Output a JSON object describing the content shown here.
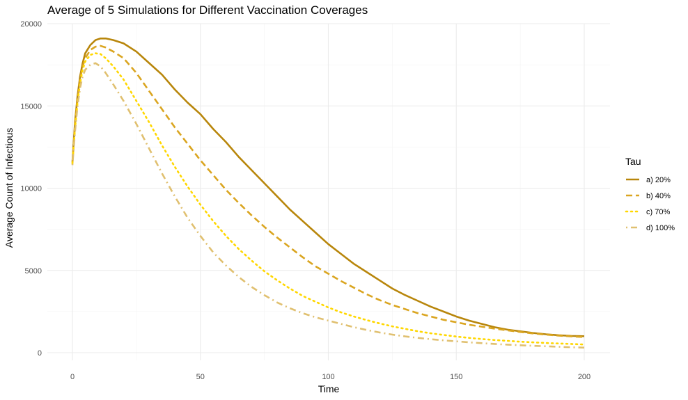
{
  "chart_data": {
    "type": "line",
    "title": "Average of 5 Simulations for Different Vaccination Coverages",
    "xlabel": "Time",
    "ylabel": "Average Count of Infectious",
    "xlim": [
      -8,
      210
    ],
    "ylim": [
      -300,
      20300
    ],
    "x_ticks": [
      0,
      50,
      100,
      150,
      200
    ],
    "x_tick_labels": [
      "0",
      "50",
      "100",
      "150",
      "200"
    ],
    "y_ticks": [
      0,
      5000,
      10000,
      15000,
      20000
    ],
    "y_tick_labels": [
      "0",
      "5000",
      "10000",
      "15000",
      "20000"
    ],
    "grid": true,
    "legend": {
      "title": "Tau",
      "position": "right"
    },
    "series": [
      {
        "name": "a) 20%",
        "color": "#B8860B",
        "dash": "solid",
        "points": [
          [
            0,
            11600
          ],
          [
            1,
            14000
          ],
          [
            2,
            15600
          ],
          [
            3,
            16800
          ],
          [
            4,
            17600
          ],
          [
            5,
            18200
          ],
          [
            7,
            18700
          ],
          [
            9,
            19000
          ],
          [
            11,
            19100
          ],
          [
            13,
            19100
          ],
          [
            16,
            19000
          ],
          [
            20,
            18800
          ],
          [
            25,
            18300
          ],
          [
            30,
            17600
          ],
          [
            35,
            16900
          ],
          [
            40,
            16000
          ],
          [
            45,
            15200
          ],
          [
            50,
            14500
          ],
          [
            55,
            13600
          ],
          [
            60,
            12800
          ],
          [
            65,
            11900
          ],
          [
            70,
            11100
          ],
          [
            75,
            10300
          ],
          [
            80,
            9500
          ],
          [
            85,
            8700
          ],
          [
            90,
            8000
          ],
          [
            95,
            7300
          ],
          [
            100,
            6600
          ],
          [
            105,
            6000
          ],
          [
            110,
            5400
          ],
          [
            115,
            4900
          ],
          [
            120,
            4400
          ],
          [
            125,
            3900
          ],
          [
            130,
            3500
          ],
          [
            135,
            3150
          ],
          [
            140,
            2800
          ],
          [
            145,
            2500
          ],
          [
            150,
            2200
          ],
          [
            155,
            1950
          ],
          [
            160,
            1750
          ],
          [
            165,
            1550
          ],
          [
            170,
            1400
          ],
          [
            175,
            1300
          ],
          [
            180,
            1200
          ],
          [
            185,
            1120
          ],
          [
            190,
            1060
          ],
          [
            195,
            1020
          ],
          [
            200,
            1000
          ]
        ]
      },
      {
        "name": "b) 40%",
        "color": "#DAA520",
        "dash": "dashed",
        "points": [
          [
            0,
            11500
          ],
          [
            1,
            13800
          ],
          [
            2,
            15400
          ],
          [
            3,
            16600
          ],
          [
            4,
            17400
          ],
          [
            5,
            17900
          ],
          [
            7,
            18400
          ],
          [
            9,
            18600
          ],
          [
            11,
            18650
          ],
          [
            13,
            18550
          ],
          [
            16,
            18300
          ],
          [
            20,
            17900
          ],
          [
            25,
            17000
          ],
          [
            30,
            15900
          ],
          [
            35,
            14800
          ],
          [
            40,
            13700
          ],
          [
            45,
            12700
          ],
          [
            50,
            11700
          ],
          [
            55,
            10800
          ],
          [
            60,
            9900
          ],
          [
            65,
            9100
          ],
          [
            70,
            8350
          ],
          [
            75,
            7650
          ],
          [
            80,
            7000
          ],
          [
            85,
            6400
          ],
          [
            90,
            5800
          ],
          [
            95,
            5250
          ],
          [
            100,
            4800
          ],
          [
            105,
            4350
          ],
          [
            110,
            3950
          ],
          [
            115,
            3550
          ],
          [
            120,
            3200
          ],
          [
            125,
            2900
          ],
          [
            130,
            2650
          ],
          [
            135,
            2400
          ],
          [
            140,
            2200
          ],
          [
            145,
            2000
          ],
          [
            150,
            1850
          ],
          [
            155,
            1700
          ],
          [
            160,
            1580
          ],
          [
            165,
            1460
          ],
          [
            170,
            1360
          ],
          [
            175,
            1260
          ],
          [
            180,
            1170
          ],
          [
            185,
            1100
          ],
          [
            190,
            1040
          ],
          [
            195,
            990
          ],
          [
            200,
            950
          ]
        ]
      },
      {
        "name": "c) 70%",
        "color": "#FFD700",
        "dash": "dotted",
        "points": [
          [
            0,
            11500
          ],
          [
            1,
            13600
          ],
          [
            2,
            15200
          ],
          [
            3,
            16400
          ],
          [
            4,
            17200
          ],
          [
            5,
            17700
          ],
          [
            7,
            18100
          ],
          [
            9,
            18200
          ],
          [
            11,
            18150
          ],
          [
            13,
            17900
          ],
          [
            16,
            17400
          ],
          [
            20,
            16600
          ],
          [
            25,
            15300
          ],
          [
            30,
            14000
          ],
          [
            35,
            12600
          ],
          [
            40,
            11300
          ],
          [
            45,
            10100
          ],
          [
            50,
            9000
          ],
          [
            55,
            8000
          ],
          [
            60,
            7100
          ],
          [
            65,
            6300
          ],
          [
            70,
            5600
          ],
          [
            75,
            4950
          ],
          [
            80,
            4400
          ],
          [
            85,
            3900
          ],
          [
            90,
            3450
          ],
          [
            95,
            3100
          ],
          [
            100,
            2750
          ],
          [
            105,
            2450
          ],
          [
            110,
            2200
          ],
          [
            115,
            1980
          ],
          [
            120,
            1780
          ],
          [
            125,
            1600
          ],
          [
            130,
            1450
          ],
          [
            135,
            1300
          ],
          [
            140,
            1180
          ],
          [
            145,
            1080
          ],
          [
            150,
            980
          ],
          [
            155,
            900
          ],
          [
            160,
            830
          ],
          [
            165,
            770
          ],
          [
            170,
            720
          ],
          [
            175,
            670
          ],
          [
            180,
            630
          ],
          [
            185,
            590
          ],
          [
            190,
            560
          ],
          [
            195,
            530
          ],
          [
            200,
            500
          ]
        ]
      },
      {
        "name": "d) 100%",
        "color": "#E0C070",
        "dash": "dotdash",
        "points": [
          [
            0,
            11400
          ],
          [
            1,
            13400
          ],
          [
            2,
            15000
          ],
          [
            3,
            16100
          ],
          [
            4,
            16800
          ],
          [
            5,
            17200
          ],
          [
            7,
            17500
          ],
          [
            9,
            17600
          ],
          [
            11,
            17400
          ],
          [
            13,
            17000
          ],
          [
            16,
            16300
          ],
          [
            20,
            15300
          ],
          [
            25,
            13900
          ],
          [
            30,
            12400
          ],
          [
            35,
            10900
          ],
          [
            40,
            9500
          ],
          [
            45,
            8200
          ],
          [
            50,
            7100
          ],
          [
            55,
            6100
          ],
          [
            60,
            5300
          ],
          [
            65,
            4600
          ],
          [
            70,
            4000
          ],
          [
            75,
            3500
          ],
          [
            80,
            3050
          ],
          [
            85,
            2700
          ],
          [
            90,
            2400
          ],
          [
            95,
            2150
          ],
          [
            100,
            1950
          ],
          [
            105,
            1750
          ],
          [
            110,
            1550
          ],
          [
            115,
            1380
          ],
          [
            120,
            1230
          ],
          [
            125,
            1100
          ],
          [
            130,
            990
          ],
          [
            135,
            900
          ],
          [
            140,
            820
          ],
          [
            145,
            750
          ],
          [
            150,
            690
          ],
          [
            155,
            630
          ],
          [
            160,
            580
          ],
          [
            165,
            530
          ],
          [
            170,
            490
          ],
          [
            175,
            450
          ],
          [
            180,
            420
          ],
          [
            185,
            390
          ],
          [
            190,
            360
          ],
          [
            195,
            330
          ],
          [
            200,
            310
          ]
        ]
      }
    ]
  }
}
